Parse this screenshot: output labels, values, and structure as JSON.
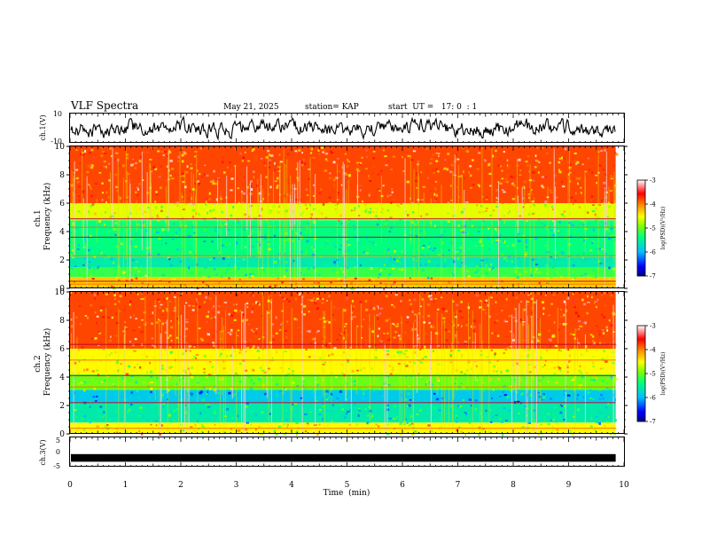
{
  "header": {
    "title": "VLF Spectra",
    "date": "May 21, 2025",
    "station": "station= KAP",
    "start": "start  UT =   17: 0  : 1"
  },
  "chart_data": {
    "type": "heatmap",
    "title": "VLF Spectra",
    "xlabel": "Time  (min)",
    "xlim": [
      0,
      10
    ],
    "xticks": [
      0,
      1,
      2,
      3,
      4,
      5,
      6,
      7,
      8,
      9,
      10
    ],
    "data_end_min": 9.85,
    "panels": [
      {
        "id": "ch1-waveform",
        "type": "line",
        "ylabel": "ch.1(V)",
        "ylim": [
          -10,
          10
        ],
        "yticks": [
          "10",
          "-10"
        ],
        "mean": 0,
        "amplitude": 4
      },
      {
        "id": "ch1-spectrogram",
        "type": "heatmap",
        "ylabel_top": "ch.1",
        "ylabel": "Frequency  (kHz)",
        "ylim": [
          0,
          10
        ],
        "yticks": [
          "0",
          "2",
          "4",
          "6",
          "8",
          "10"
        ],
        "colorbar": {
          "label": "log(PSD)(V²/Hz)",
          "range": [
            -7,
            -3
          ],
          "ticks": [
            "-3",
            "-4",
            "-5",
            "-6",
            "-7"
          ]
        },
        "bands": [
          {
            "from_khz": 0.0,
            "to_khz": 0.8,
            "log_psd": -4.3
          },
          {
            "from_khz": 0.8,
            "to_khz": 1.5,
            "log_psd": -5.2
          },
          {
            "from_khz": 1.5,
            "to_khz": 2.2,
            "log_psd": -5.6
          },
          {
            "from_khz": 2.2,
            "to_khz": 4.8,
            "log_psd": -5.4
          },
          {
            "from_khz": 4.8,
            "to_khz": 6.0,
            "log_psd": -4.6
          },
          {
            "from_khz": 6.0,
            "to_khz": 10.0,
            "log_psd": -3.8
          }
        ],
        "lines_khz": [
          0.3,
          0.5,
          2.3,
          3.6,
          4.3,
          4.9
        ]
      },
      {
        "id": "ch2-spectrogram",
        "type": "heatmap",
        "ylabel_top": "ch.2",
        "ylabel": "Frequency  (kHz)",
        "ylim": [
          0,
          10
        ],
        "yticks": [
          "0",
          "2",
          "4",
          "6",
          "8",
          "10"
        ],
        "colorbar": {
          "label": "log(PSD)(V²/Hz)",
          "range": [
            -7,
            -3
          ],
          "ticks": [
            "-3",
            "-4",
            "-5",
            "-6",
            "-7"
          ]
        },
        "bands": [
          {
            "from_khz": 0.0,
            "to_khz": 0.8,
            "log_psd": -4.5
          },
          {
            "from_khz": 0.8,
            "to_khz": 2.2,
            "log_psd": -5.6
          },
          {
            "from_khz": 2.2,
            "to_khz": 3.1,
            "log_psd": -5.9
          },
          {
            "from_khz": 3.1,
            "to_khz": 4.2,
            "log_psd": -5.0
          },
          {
            "from_khz": 4.2,
            "to_khz": 6.0,
            "log_psd": -4.5
          },
          {
            "from_khz": 6.0,
            "to_khz": 10.0,
            "log_psd": -3.8
          }
        ],
        "lines_khz": [
          0.4,
          2.2,
          3.3,
          4.1,
          5.2,
          6.3
        ]
      },
      {
        "id": "ch3-waveform",
        "type": "line",
        "ylabel": "ch.3(V)",
        "ylim": [
          -5,
          5
        ],
        "yticks": [
          "5",
          "0",
          "-5"
        ],
        "mean": -2,
        "amplitude": 0.3
      }
    ]
  },
  "colors": {
    "axis": "#000000",
    "background": "#ffffff",
    "colorscale": [
      "#00008b",
      "#0000ff",
      "#00bfff",
      "#00ff7f",
      "#7fff00",
      "#ffff00",
      "#ff8c00",
      "#ff0000",
      "#ffffff"
    ]
  }
}
